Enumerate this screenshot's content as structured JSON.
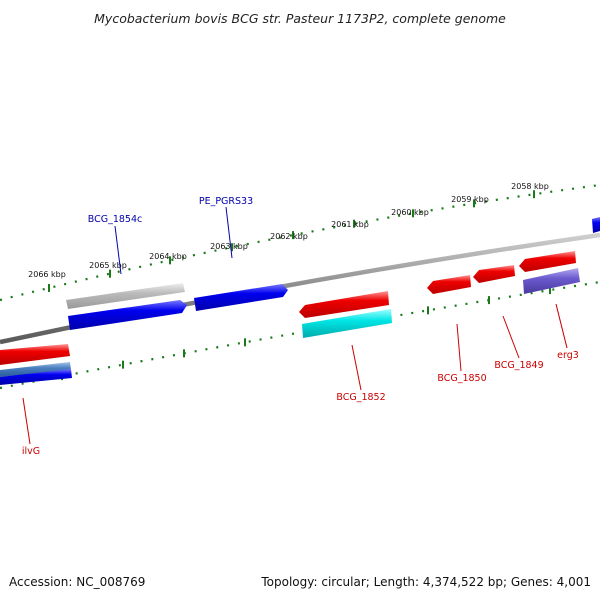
{
  "title": "Mycobacterium bovis BCG str. Pasteur 1173P2, complete genome",
  "footer": {
    "accession": "Accession: NC_008769",
    "summary": "Topology: circular; Length: 4,374,522 bp; Genes: 4,001"
  },
  "ticks": [
    {
      "label": "2066 kbp"
    },
    {
      "label": "2065 kbp"
    },
    {
      "label": "2064 kbp"
    },
    {
      "label": "2063 kbp"
    },
    {
      "label": "2062 kbp"
    },
    {
      "label": "2061 kbp"
    },
    {
      "label": "2060 kbp"
    },
    {
      "label": "2059 kbp"
    },
    {
      "label": "2058 kbp"
    }
  ],
  "gene_labels": [
    {
      "text": "BCG_1854c",
      "color": "#0000aa"
    },
    {
      "text": "PE_PGRS33",
      "color": "#0000aa"
    },
    {
      "text": "BCG_1852",
      "color": "#cc0000"
    },
    {
      "text": "BCG_1850",
      "color": "#cc0000"
    },
    {
      "text": "BCG_1849",
      "color": "#cc0000"
    },
    {
      "text": "erg3",
      "color": "#cc0000"
    },
    {
      "text": "ilvG",
      "color": "#cc0000"
    }
  ],
  "colors": {
    "forward": "#ee0000",
    "reverse": "#0000ee",
    "cyan": "#00dddd",
    "gray": "#bbbbbb",
    "steel": "#4a7fc0",
    "purple": "#6a5acd",
    "backbone": "#888888",
    "tick": "#1a7a1a"
  }
}
